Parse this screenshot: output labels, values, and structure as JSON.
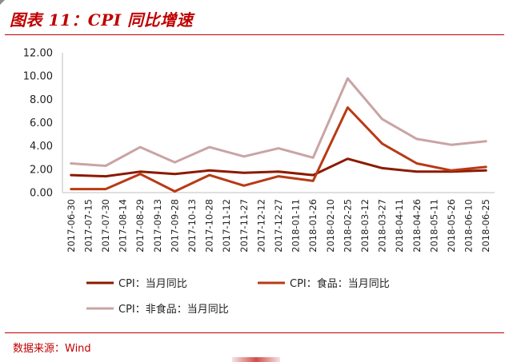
{
  "header": {
    "title": "图表 11：CPI 同比增速"
  },
  "footer": {
    "source": "数据来源：Wind"
  },
  "colors": {
    "accent": "#c00000",
    "series1": "#8b1a00",
    "series2": "#b83a14",
    "series3": "#c9a4a4"
  },
  "chart_data": {
    "type": "line",
    "title": "",
    "xlabel": "",
    "ylabel": "",
    "ylim": [
      0,
      12
    ],
    "yticks": [
      "0.00",
      "2.00",
      "4.00",
      "6.00",
      "8.00",
      "10.00",
      "12.00"
    ],
    "grid": false,
    "legend_position": "bottom",
    "x": [
      "2017-06-30",
      "2017-07-15",
      "2017-07-30",
      "2017-08-14",
      "2017-08-29",
      "2017-09-13",
      "2017-09-28",
      "2017-10-13",
      "2017-10-28",
      "2017-11-12",
      "2017-11-27",
      "2017-12-12",
      "2017-12-27",
      "2018-01-11",
      "2018-01-26",
      "2018-02-10",
      "2018-02-25",
      "2018-03-12",
      "2018-03-27",
      "2018-04-11",
      "2018-04-26",
      "2018-05-11",
      "2018-05-26",
      "2018-06-10",
      "2018-06-25"
    ],
    "series": [
      {
        "name": "CPI：当月同比",
        "color": "#8b1a00",
        "values": [
          1.5,
          null,
          1.4,
          null,
          1.8,
          null,
          1.6,
          null,
          1.9,
          null,
          1.7,
          null,
          1.8,
          null,
          1.5,
          null,
          2.9,
          null,
          2.1,
          null,
          1.8,
          null,
          1.8,
          null,
          1.9
        ]
      },
      {
        "name": "CPI：食品：当月同比",
        "color": "#b83a14",
        "values": [
          0.3,
          null,
          0.3,
          null,
          1.6,
          null,
          0.1,
          null,
          1.5,
          null,
          0.6,
          null,
          1.4,
          null,
          1.0,
          null,
          7.3,
          null,
          4.2,
          null,
          2.5,
          null,
          1.9,
          null,
          2.2
        ]
      },
      {
        "name": "CPI：非食品：当月同比",
        "color": "#c9a4a4",
        "values": [
          2.5,
          null,
          2.3,
          null,
          3.9,
          null,
          2.6,
          null,
          3.9,
          null,
          3.1,
          null,
          3.8,
          null,
          3.0,
          null,
          9.8,
          null,
          6.3,
          null,
          4.6,
          null,
          4.1,
          null,
          4.4
        ]
      }
    ]
  }
}
